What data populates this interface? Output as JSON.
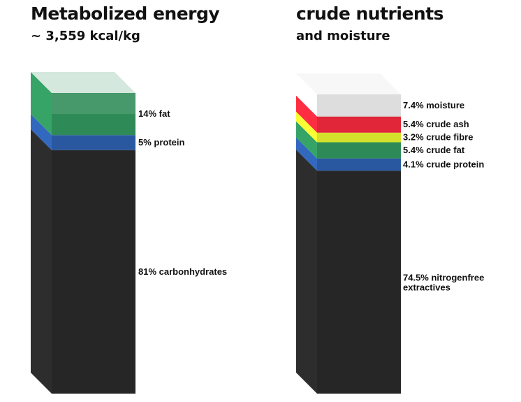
{
  "charts": [
    {
      "title": "Metabolized energy",
      "subtitle": "~ 3,559 kcal/kg"
    },
    {
      "title": "crude nutrients",
      "subtitle": "and moisture"
    }
  ],
  "chart_data": [
    {
      "type": "bar",
      "stacked": true,
      "segments": [
        {
          "label": "81% carbonhydrates",
          "value": 81,
          "color": "#262626"
        },
        {
          "label": "5% protein",
          "value": 5,
          "color": "#2a58a0"
        },
        {
          "label": "14% fat",
          "value": 14,
          "color": "#2e8b57"
        }
      ],
      "unit": "%",
      "grid": false,
      "legend": "right"
    },
    {
      "type": "bar",
      "stacked": true,
      "segments": [
        {
          "label": "74.5% nitrogenfree extractives",
          "value": 74.5,
          "color": "#262626"
        },
        {
          "label": "4.1% crude protein",
          "value": 4.1,
          "color": "#2a58a0"
        },
        {
          "label": "5.4% crude fat",
          "value": 5.4,
          "color": "#2e8b57"
        },
        {
          "label": "3.2% crude fibre",
          "value": 3.2,
          "color": "#d4e02c"
        },
        {
          "label": "5.4% crude ash",
          "value": 5.4,
          "color": "#e02638"
        },
        {
          "label": "7.4% moisture",
          "value": 7.4,
          "color": "#d9d9d9"
        }
      ],
      "unit": "%",
      "grid": false,
      "legend": "right"
    }
  ]
}
